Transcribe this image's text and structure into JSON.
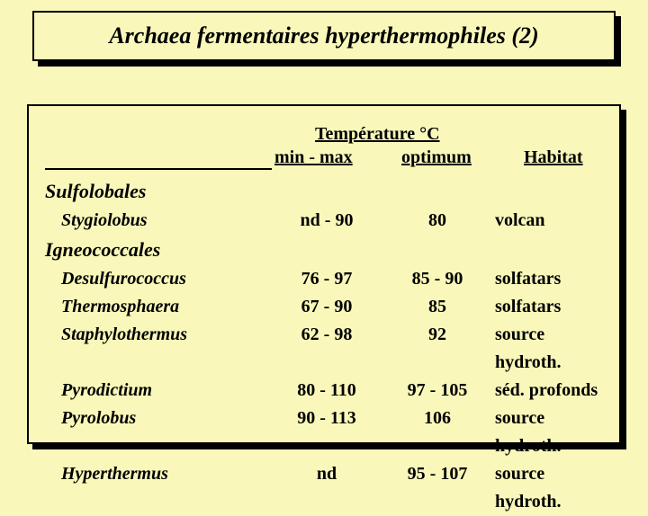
{
  "title": "Archaea fermentaires hyperthermophiles (2)",
  "headers": {
    "temperature": "Température °C",
    "minmax": "min - max",
    "optimum": "optimum",
    "habitat": "Habitat"
  },
  "orders": [
    {
      "name": "Sulfolobales",
      "species": [
        {
          "name": "Stygiolobus",
          "minmax": "nd - 90",
          "optimum": "80",
          "habitat": "volcan"
        }
      ]
    },
    {
      "name": "Igneococcales",
      "species": [
        {
          "name": "Desulfurococcus",
          "minmax": "76 - 97",
          "optimum": "85 - 90",
          "habitat": "solfatars"
        },
        {
          "name": "Thermosphaera",
          "minmax": "67 - 90",
          "optimum": "85",
          "habitat": "solfatars"
        },
        {
          "name": "Staphylothermus",
          "minmax": "62 - 98",
          "optimum": "92",
          "habitat": "source hydroth."
        },
        {
          "name": "Pyrodictium",
          "minmax": "80 - 110",
          "optimum": "97 - 105",
          "habitat": "séd. profonds"
        },
        {
          "name": "Pyrolobus",
          "minmax": "90 - 113",
          "optimum": "106",
          "habitat": "source hydroth."
        },
        {
          "name": "Hyperthermus",
          "minmax": "nd",
          "optimum": "95 - 107",
          "habitat": "source hydroth."
        }
      ]
    }
  ],
  "colors": {
    "background": "#f9f8ba",
    "border": "#000000",
    "text": "#000000"
  },
  "typography": {
    "title_fontsize": 26,
    "header_fontsize": 20,
    "order_fontsize": 22,
    "row_fontsize": 20,
    "font_family": "Georgia, Times New Roman, serif"
  }
}
